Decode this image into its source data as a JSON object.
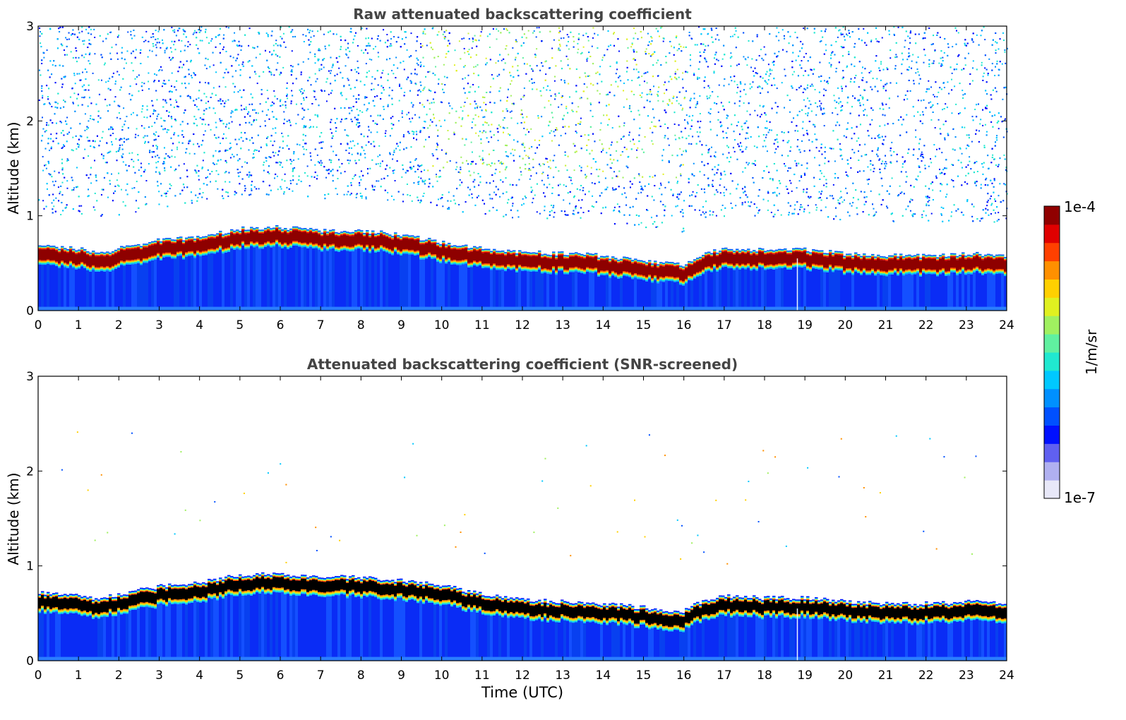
{
  "chart_data": [
    {
      "type": "heatmap",
      "title": "Raw attenuated backscattering coefficient",
      "xlabel": "",
      "ylabel": "Altitude (km)",
      "xlim": [
        0,
        24
      ],
      "ylim": [
        0,
        3
      ],
      "x_ticks": [
        "0",
        "1",
        "2",
        "3",
        "4",
        "5",
        "6",
        "7",
        "8",
        "9",
        "10",
        "11",
        "12",
        "13",
        "14",
        "15",
        "16",
        "17",
        "18",
        "19",
        "20",
        "21",
        "22",
        "23",
        "24"
      ],
      "y_ticks": [
        "0",
        "1",
        "2",
        "3"
      ],
      "layer_top_km": {
        "time_h": [
          0,
          1,
          1.5,
          2,
          3,
          4,
          5,
          6,
          7,
          8,
          9,
          10,
          11,
          12,
          13,
          14,
          15,
          16,
          16.5,
          17,
          18,
          19,
          20,
          21,
          22,
          23,
          24
        ],
        "altitude_km": [
          0.68,
          0.65,
          0.6,
          0.66,
          0.74,
          0.78,
          0.86,
          0.88,
          0.84,
          0.84,
          0.8,
          0.72,
          0.66,
          0.62,
          0.6,
          0.58,
          0.52,
          0.48,
          0.6,
          0.64,
          0.64,
          0.64,
          0.6,
          0.58,
          0.58,
          0.6,
          0.58
        ]
      },
      "noise_description": "sparse blue/cyan noise above layer, stronger green-yellow around 10-16 UTC"
    },
    {
      "type": "heatmap",
      "title": "Attenuated backscattering coefficient (SNR-screened)",
      "xlabel": "Time (UTC)",
      "ylabel": "Altitude (km)",
      "xlim": [
        0,
        24
      ],
      "ylim": [
        0,
        3
      ],
      "x_ticks": [
        "0",
        "1",
        "2",
        "3",
        "4",
        "5",
        "6",
        "7",
        "8",
        "9",
        "10",
        "11",
        "12",
        "13",
        "14",
        "15",
        "16",
        "17",
        "18",
        "19",
        "20",
        "21",
        "22",
        "23",
        "24"
      ],
      "y_ticks": [
        "0",
        "1",
        "2",
        "3"
      ],
      "layer_top_km": {
        "time_h": [
          0,
          1,
          1.5,
          2,
          3,
          4,
          5,
          6,
          7,
          8,
          9,
          10,
          11,
          12,
          13,
          14,
          15,
          16,
          16.5,
          17,
          18,
          19,
          20,
          21,
          22,
          23,
          24
        ],
        "altitude_km": [
          0.72,
          0.68,
          0.64,
          0.7,
          0.78,
          0.82,
          0.9,
          0.92,
          0.88,
          0.88,
          0.84,
          0.8,
          0.7,
          0.64,
          0.62,
          0.6,
          0.56,
          0.52,
          0.64,
          0.68,
          0.66,
          0.66,
          0.62,
          0.6,
          0.6,
          0.62,
          0.6
        ]
      }
    }
  ],
  "colorbar": {
    "label": "1/m/sr",
    "max_label": "1e-4",
    "min_label": "1e-7",
    "colors": [
      "#e8e8f8",
      "#b0b0f0",
      "#6060f0",
      "#0010ff",
      "#0050ff",
      "#0090ff",
      "#00c8ff",
      "#20e8d0",
      "#60f0a0",
      "#a0f060",
      "#e0f020",
      "#ffd000",
      "#ff9000",
      "#ff4000",
      "#e00000",
      "#900000"
    ]
  }
}
